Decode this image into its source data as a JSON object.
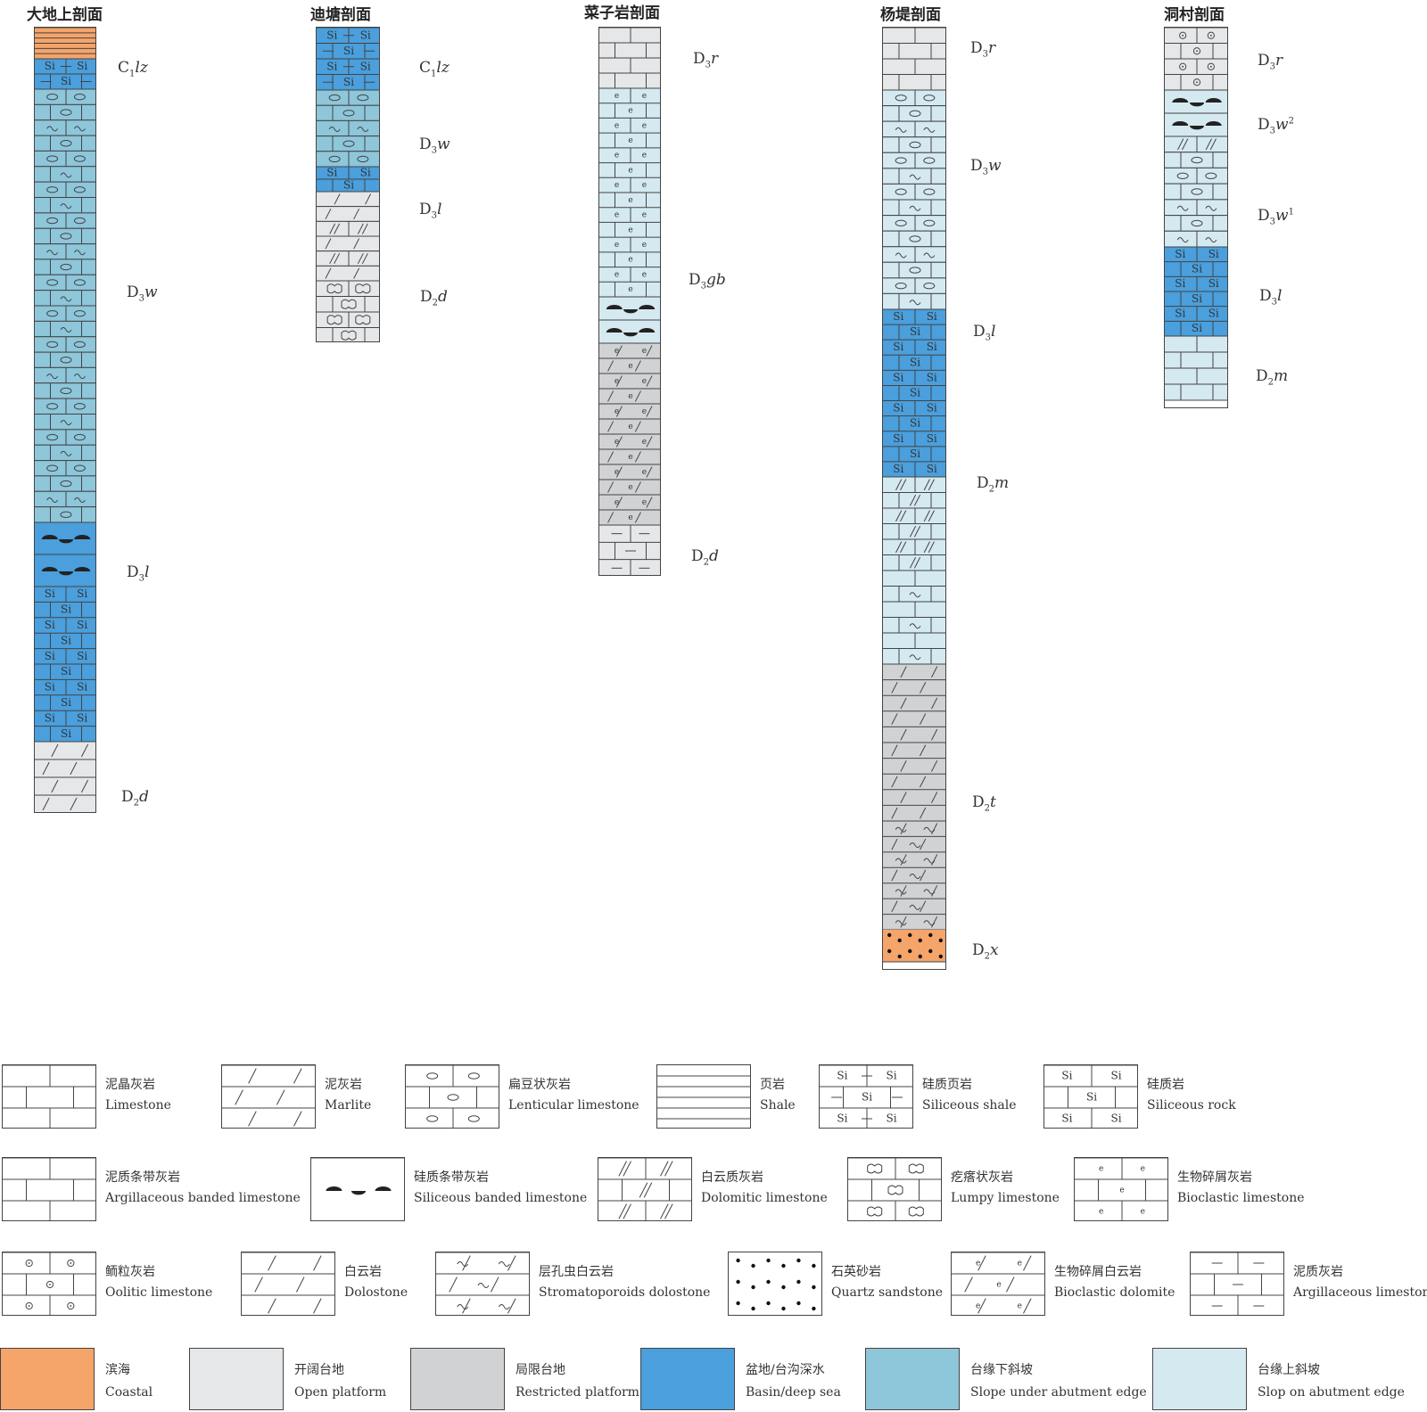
{
  "sections": [
    {
      "title": "大地上剖面",
      "formations": [
        {
          "code": "C",
          "sub1": "1",
          "letters": "lz"
        },
        {
          "code": "D",
          "sub1": "3",
          "letters": "w"
        },
        {
          "code": "D",
          "sub1": "3",
          "letters": "l"
        },
        {
          "code": "D",
          "sub1": "2",
          "letters": "d"
        }
      ]
    },
    {
      "title": "迪塘剖面",
      "formations": [
        {
          "code": "C",
          "sub1": "1",
          "letters": "lz"
        },
        {
          "code": "D",
          "sub1": "3",
          "letters": "w"
        },
        {
          "code": "D",
          "sub1": "3",
          "letters": "l"
        },
        {
          "code": "D",
          "sub1": "2",
          "letters": "d"
        }
      ]
    },
    {
      "title": "菜子岩剖面",
      "formations": [
        {
          "code": "D",
          "sub1": "3",
          "letters": "r"
        },
        {
          "code": "D",
          "sub1": "3",
          "letters": "gb"
        },
        {
          "code": "D",
          "sub1": "2",
          "letters": "d"
        }
      ]
    },
    {
      "title": "杨堤剖面",
      "formations": [
        {
          "code": "D",
          "sub1": "3",
          "letters": "r"
        },
        {
          "code": "D",
          "sub1": "3",
          "letters": "w"
        },
        {
          "code": "D",
          "sub1": "3",
          "letters": "l"
        },
        {
          "code": "D",
          "sub1": "2",
          "letters": "m"
        },
        {
          "code": "D",
          "sub1": "2",
          "letters": "t"
        },
        {
          "code": "D",
          "sub1": "2",
          "letters": "x"
        }
      ]
    },
    {
      "title": "洞村剖面",
      "formations": [
        {
          "code": "D",
          "sub1": "3",
          "letters": "r"
        },
        {
          "code": "D",
          "sub1": "3",
          "letters": "w",
          "sup": "2"
        },
        {
          "code": "D",
          "sub1": "3",
          "letters": "w",
          "sup": "1"
        },
        {
          "code": "D",
          "sub1": "3",
          "letters": "l"
        },
        {
          "code": "D",
          "sub1": "2",
          "letters": "m"
        }
      ]
    }
  ],
  "legend_lithology": [
    {
      "cn": "泥晶灰岩",
      "en": "Limestone",
      "pattern": "limestone"
    },
    {
      "cn": "泥灰岩",
      "en": "Marlite",
      "pattern": "marlite"
    },
    {
      "cn": "扁豆状灰岩",
      "en": "Lenticular limestone",
      "pattern": "lenticular"
    },
    {
      "cn": "页岩",
      "en": "Shale",
      "pattern": "shale"
    },
    {
      "cn": "硅质页岩",
      "en": "Siliceous shale",
      "pattern": "sishale"
    },
    {
      "cn": "硅质岩",
      "en": "Siliceous rock",
      "pattern": "sirock"
    },
    {
      "cn": "泥质条带灰岩",
      "en": "Argillaceous banded limestone",
      "pattern": "argband"
    },
    {
      "cn": "硅质条带灰岩",
      "en": "Siliceous banded limestone",
      "pattern": "siband"
    },
    {
      "cn": "白云质灰岩",
      "en": "Dolomitic limestone",
      "pattern": "dolomitic"
    },
    {
      "cn": "疙瘩状灰岩",
      "en": "Lumpy limestone",
      "pattern": "lumpy"
    },
    {
      "cn": "生物碎屑灰岩",
      "en": "Bioclastic limestone",
      "pattern": "bioclastic"
    },
    {
      "cn": "鲕粒灰岩",
      "en": "Oolitic limestone",
      "pattern": "oolitic"
    },
    {
      "cn": "白云岩",
      "en": "Dolostone",
      "pattern": "dolostone"
    },
    {
      "cn": "层孔虫白云岩",
      "en": "Stromatoporoids dolostone",
      "pattern": "stromato"
    },
    {
      "cn": "石英砂岩",
      "en": "Quartz sandstone",
      "pattern": "sandstone"
    },
    {
      "cn": "生物碎屑白云岩",
      "en": "Bioclastic dolomite",
      "pattern": "biodolo"
    },
    {
      "cn": "泥质灰岩",
      "en": "Argillaceous limestone",
      "pattern": "arglime"
    }
  ],
  "legend_environment": [
    {
      "cn": "滨海",
      "en": "Coastal",
      "color": "#f5a46a"
    },
    {
      "cn": "开阔台地",
      "en": "Open platform",
      "color": "#e6e7e9"
    },
    {
      "cn": "局限台地",
      "en": "Restricted platform",
      "color": "#d1d2d4"
    },
    {
      "cn": "盆地/台沟深水",
      "en": "Basin/deep sea",
      "color": "#4a9fdc"
    },
    {
      "cn": "台缘下斜坡",
      "en": "Slope under abutment edge",
      "color": "#8ec6da"
    },
    {
      "cn": "台缘上斜坡",
      "en": "Slop on abutment edge",
      "color": "#d5e9f1"
    }
  ],
  "pattern_text": {
    "si": "Si",
    "bio": "e"
  }
}
